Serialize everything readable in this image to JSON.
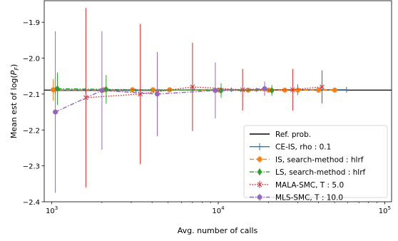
{
  "chart_data": {
    "type": "line",
    "xlabel": "Avg. number of calls",
    "ylabel_parts": [
      "Mean est of log(",
      "P",
      "F",
      ")"
    ],
    "x_scale": "log",
    "xlim": [
      900,
      110000
    ],
    "ylim": [
      -2.4,
      -1.84
    ],
    "xticks": [
      {
        "value": 1000,
        "base": "10",
        "exp": "3"
      },
      {
        "value": 10000,
        "base": "10",
        "exp": "4"
      },
      {
        "value": 100000,
        "base": "10",
        "exp": "5"
      }
    ],
    "yticks": [
      {
        "value": -1.9,
        "label": "−1.9"
      },
      {
        "value": -2.0,
        "label": "−2.0"
      },
      {
        "value": -2.1,
        "label": "−2.1"
      },
      {
        "value": -2.2,
        "label": "−2.2"
      },
      {
        "value": -2.3,
        "label": "−2.3"
      },
      {
        "value": -2.4,
        "label": "−2.4"
      }
    ],
    "grid": false,
    "legend_position": "lower-right",
    "reference": {
      "name": "Ref. prob.",
      "value": -2.089,
      "color": "#000000"
    },
    "series": [
      {
        "name": "CE-IS, rho : 0.1",
        "color": "#1f77b4",
        "linestyle": "solid",
        "marker": "none",
        "x": [
          1050,
          1600,
          2000,
          3200,
          4300,
          7000,
          9500,
          12000,
          17000,
          21000,
          30000,
          59000
        ],
        "y": [
          -2.09,
          -2.09,
          -2.09,
          -2.09,
          -2.09,
          -2.088,
          -2.088,
          -2.088,
          -2.088,
          -2.088,
          -2.088,
          -2.088
        ],
        "err": [
          0.01,
          0.008,
          0.006,
          0.005,
          0.005,
          0.008,
          0.006,
          0.006,
          0.006,
          0.006,
          0.015,
          0.008
        ]
      },
      {
        "name": "IS, search-method : hlrf",
        "color": "#ff7f0e",
        "linestyle": "dashed",
        "marker": "circle",
        "x": [
          1020,
          2050,
          3050,
          4050,
          5100,
          10100,
          15100,
          20100,
          25100,
          30100,
          40100,
          50100
        ],
        "y": [
          -2.088,
          -2.088,
          -2.088,
          -2.088,
          -2.088,
          -2.089,
          -2.089,
          -2.089,
          -2.089,
          -2.089,
          -2.089,
          -2.089
        ],
        "err": [
          0.03,
          0.005,
          0.004,
          0.004,
          0.003,
          0.003,
          0.003,
          0.003,
          0.003,
          0.003,
          0.003,
          0.003
        ]
      },
      {
        "name": "LS, search-method : hlrf",
        "color": "#2ca02c",
        "linestyle": "dashdot",
        "marker": "diamond",
        "x": [
          1080,
          2120,
          10400,
          21000
        ],
        "y": [
          -2.085,
          -2.087,
          -2.09,
          -2.09
        ],
        "err": [
          0.045,
          0.04,
          0.02,
          0.015
        ]
      },
      {
        "name": "MALA-SMC, T : 5.0",
        "color": "#d62728",
        "linestyle": "dotted",
        "marker": "x",
        "x": [
          1600,
          3400,
          7000,
          14000,
          28000,
          42000
        ],
        "y": [
          -2.11,
          -2.1,
          -2.08,
          -2.088,
          -2.088,
          -2.08
        ],
        "err": [
          0.25,
          0.195,
          0.123,
          0.058,
          0.058,
          0.046
        ]
      },
      {
        "name": "MLS-SMC, T : 10.0",
        "color": "#9467bd",
        "linestyle": "dashdot",
        "marker": "circle",
        "x": [
          1050,
          2000,
          4300,
          9600,
          19000
        ],
        "y": [
          -2.15,
          -2.09,
          -2.1,
          -2.09,
          -2.085
        ],
        "err": [
          0.225,
          0.165,
          0.117,
          0.078,
          0.02
        ]
      }
    ]
  }
}
